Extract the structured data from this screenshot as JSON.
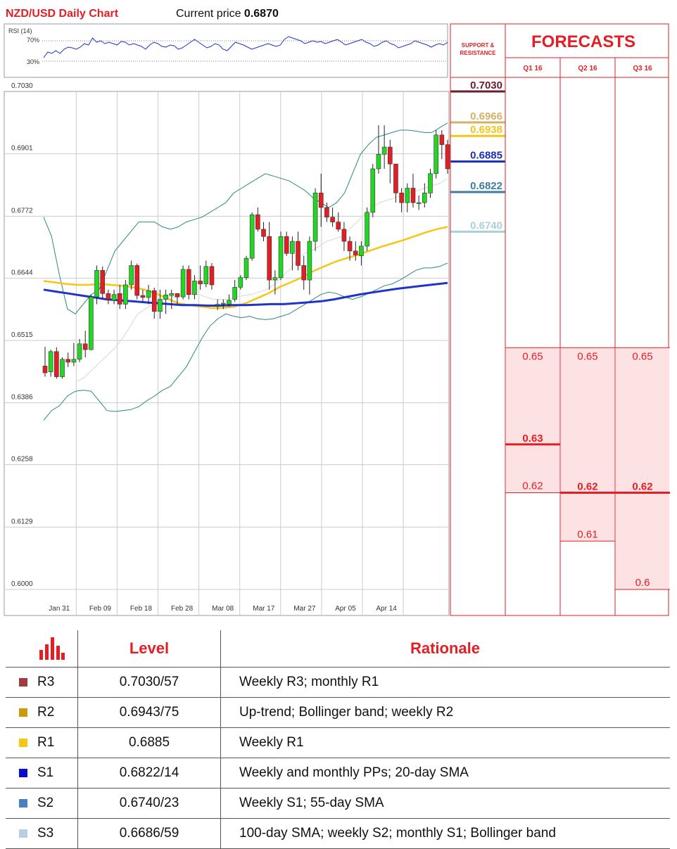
{
  "header": {
    "title": "NZD/USD Daily Chart",
    "price_label": "Current price ",
    "price_value": "0.6870"
  },
  "rsi": {
    "label": "RSI (14)",
    "upper_label": "70%",
    "lower_label": "30%",
    "values": [
      40,
      48,
      46,
      50,
      46,
      52,
      55,
      54,
      52,
      55,
      60,
      58,
      68,
      62,
      64,
      60,
      62,
      60,
      58,
      63,
      62,
      58,
      60,
      58,
      56,
      52,
      58,
      62,
      60,
      56,
      55,
      58,
      57,
      52,
      54,
      58,
      62,
      66,
      62,
      58,
      54,
      56,
      60,
      58,
      52,
      50,
      56,
      62,
      60,
      58,
      55,
      52,
      54,
      56,
      58,
      60,
      58,
      56,
      58,
      66,
      70,
      68,
      66,
      64,
      60,
      62,
      64,
      62,
      63,
      60,
      62,
      64,
      66,
      62,
      58,
      60,
      62,
      64,
      66,
      62,
      60,
      56,
      58,
      62,
      64,
      60,
      58,
      54,
      56,
      58,
      60,
      64,
      62,
      60,
      58,
      55,
      58,
      60,
      58,
      62
    ]
  },
  "colors": {
    "bull": "#22d722",
    "bear": "#e31e24",
    "sma20": "#dddddd",
    "sma55": "#f5c518",
    "sma100": "#2233cc",
    "bollinger": "#2a8a7e",
    "grid": "#cccccc",
    "accent": "#e31e24",
    "forecast_fill": "#fde2e3"
  },
  "chart_data": {
    "type": "candlestick",
    "title": "NZD/USD Daily Chart",
    "ylim": [
      0.6,
      0.703
    ],
    "yticks": [
      "0.7030",
      "0.6901",
      "0.6772",
      "0.6644",
      "0.6515",
      "0.6386",
      "0.6258",
      "0.6129",
      "0.6000"
    ],
    "xticks": [
      {
        "label": "Jan 31",
        "idx": 1
      },
      {
        "label": "Feb 09",
        "idx": 8
      },
      {
        "label": "Feb 18",
        "idx": 15
      },
      {
        "label": "Feb 28",
        "idx": 22
      },
      {
        "label": "Mar 08",
        "idx": 29
      },
      {
        "label": "Mar 17",
        "idx": 36
      },
      {
        "label": "Mar 27",
        "idx": 43
      },
      {
        "label": "Apr 05",
        "idx": 50
      },
      {
        "label": "Apr 14",
        "idx": 57
      }
    ],
    "candles": [
      [
        0.6462,
        0.6502,
        0.644,
        0.6448
      ],
      [
        0.645,
        0.6496,
        0.644,
        0.6492
      ],
      [
        0.6492,
        0.6501,
        0.6436,
        0.644
      ],
      [
        0.644,
        0.648,
        0.6436,
        0.6476
      ],
      [
        0.6476,
        0.649,
        0.646,
        0.647
      ],
      [
        0.647,
        0.651,
        0.6462,
        0.6476
      ],
      [
        0.6476,
        0.6518,
        0.647,
        0.6508
      ],
      [
        0.6508,
        0.6535,
        0.648,
        0.6496
      ],
      [
        0.6496,
        0.661,
        0.6495,
        0.6605
      ],
      [
        0.6605,
        0.667,
        0.659,
        0.666
      ],
      [
        0.666,
        0.6668,
        0.66,
        0.6612
      ],
      [
        0.6612,
        0.662,
        0.659,
        0.66
      ],
      [
        0.6598,
        0.662,
        0.659,
        0.661
      ],
      [
        0.6612,
        0.663,
        0.658,
        0.659
      ],
      [
        0.659,
        0.664,
        0.658,
        0.663
      ],
      [
        0.663,
        0.668,
        0.662,
        0.667
      ],
      [
        0.667,
        0.6674,
        0.66,
        0.6608
      ],
      [
        0.6608,
        0.662,
        0.6595,
        0.6604
      ],
      [
        0.6604,
        0.663,
        0.659,
        0.6618
      ],
      [
        0.6618,
        0.6624,
        0.656,
        0.6575
      ],
      [
        0.6575,
        0.662,
        0.656,
        0.66
      ],
      [
        0.66,
        0.662,
        0.657,
        0.6609
      ],
      [
        0.6608,
        0.662,
        0.658,
        0.6612
      ],
      [
        0.6612,
        0.661,
        0.659,
        0.6605
      ],
      [
        0.6605,
        0.667,
        0.66,
        0.6662
      ],
      [
        0.6662,
        0.667,
        0.66,
        0.661
      ],
      [
        0.661,
        0.665,
        0.66,
        0.6638
      ],
      [
        0.6638,
        0.667,
        0.662,
        0.6632
      ],
      [
        0.6632,
        0.668,
        0.6625,
        0.6668
      ],
      [
        0.6668,
        0.6675,
        0.662,
        0.663
      ],
      [
        0.6588,
        0.66,
        0.6578,
        0.659
      ],
      [
        0.659,
        0.66,
        0.658,
        0.6592
      ],
      [
        0.659,
        0.661,
        0.6585,
        0.6598
      ],
      [
        0.66,
        0.664,
        0.6595,
        0.6625
      ],
      [
        0.6625,
        0.665,
        0.662,
        0.6645
      ],
      [
        0.6645,
        0.669,
        0.664,
        0.6685
      ],
      [
        0.6685,
        0.678,
        0.668,
        0.6775
      ],
      [
        0.6775,
        0.679,
        0.674,
        0.6745
      ],
      [
        0.6745,
        0.676,
        0.672,
        0.673
      ],
      [
        0.673,
        0.676,
        0.662,
        0.664
      ],
      [
        0.664,
        0.666,
        0.661,
        0.6645
      ],
      [
        0.6645,
        0.674,
        0.664,
        0.673
      ],
      [
        0.673,
        0.674,
        0.669,
        0.6695
      ],
      [
        0.6695,
        0.673,
        0.666,
        0.672
      ],
      [
        0.672,
        0.674,
        0.666,
        0.667
      ],
      [
        0.667,
        0.669,
        0.662,
        0.664
      ],
      [
        0.664,
        0.673,
        0.661,
        0.672
      ],
      [
        0.672,
        0.683,
        0.67,
        0.682
      ],
      [
        0.682,
        0.686,
        0.675,
        0.679
      ],
      [
        0.679,
        0.68,
        0.676,
        0.677
      ],
      [
        0.677,
        0.679,
        0.675,
        0.676
      ],
      [
        0.676,
        0.678,
        0.674,
        0.6745
      ],
      [
        0.6745,
        0.676,
        0.67,
        0.672
      ],
      [
        0.672,
        0.673,
        0.668,
        0.67
      ],
      [
        0.67,
        0.672,
        0.668,
        0.6692
      ],
      [
        0.669,
        0.672,
        0.667,
        0.671
      ],
      [
        0.671,
        0.679,
        0.67,
        0.678
      ],
      [
        0.678,
        0.688,
        0.677,
        0.687
      ],
      [
        0.687,
        0.696,
        0.686,
        0.69
      ],
      [
        0.69,
        0.696,
        0.687,
        0.6915
      ],
      [
        0.6915,
        0.693,
        0.684,
        0.688
      ],
      [
        0.688,
        0.688,
        0.68,
        0.682
      ],
      [
        0.682,
        0.683,
        0.678,
        0.68
      ],
      [
        0.68,
        0.684,
        0.678,
        0.683
      ],
      [
        0.683,
        0.686,
        0.679,
        0.68
      ],
      [
        0.68,
        0.6815,
        0.6785,
        0.68
      ],
      [
        0.68,
        0.684,
        0.679,
        0.682
      ],
      [
        0.682,
        0.687,
        0.681,
        0.686
      ],
      [
        0.686,
        0.695,
        0.685,
        0.694
      ],
      [
        0.694,
        0.695,
        0.689,
        0.692
      ],
      [
        0.692,
        0.693,
        0.686,
        0.687
      ]
    ],
    "sma20": [
      0.643,
      0.644,
      0.6455,
      0.647,
      0.6485,
      0.65,
      0.652,
      0.6545,
      0.657,
      0.658,
      0.659,
      0.66,
      0.6605,
      0.6605,
      0.661,
      0.661,
      0.661,
      0.6605,
      0.66,
      0.66,
      0.66,
      0.6605,
      0.6608,
      0.661,
      0.6615,
      0.662,
      0.663,
      0.6645,
      0.666,
      0.668,
      0.6695,
      0.67,
      0.671,
      0.672,
      0.6725,
      0.673,
      0.6745,
      0.676,
      0.6775,
      0.679,
      0.68,
      0.6805,
      0.681,
      0.6815,
      0.682,
      0.6825,
      0.683,
      0.6835,
      0.684,
      0.685
    ],
    "sma55": [
      0.6638,
      0.6635,
      0.6632,
      0.663,
      0.663,
      0.6632,
      0.663,
      0.6628,
      0.6625,
      0.662,
      0.6612,
      0.6602,
      0.6592,
      0.6588,
      0.6585,
      0.6582,
      0.6582,
      0.6585,
      0.6592,
      0.6602,
      0.6612,
      0.6625,
      0.6635,
      0.6645,
      0.6658,
      0.6668,
      0.6678,
      0.6685,
      0.6692,
      0.67,
      0.6708,
      0.6715,
      0.6722,
      0.673,
      0.6738,
      0.6745,
      0.675
    ],
    "sma100": [
      0.662,
      0.6616,
      0.6612,
      0.6608,
      0.6604,
      0.66,
      0.6598,
      0.6596,
      0.6594,
      0.6592,
      0.659,
      0.6588,
      0.6588,
      0.6587,
      0.6587,
      0.6588,
      0.6588,
      0.6589,
      0.659,
      0.659,
      0.6592,
      0.6594,
      0.6596,
      0.66,
      0.6605,
      0.661,
      0.6614,
      0.6618,
      0.6622,
      0.6625,
      0.6628,
      0.6631,
      0.6634
    ],
    "bb_upper": [
      0.677,
      0.673,
      0.665,
      0.658,
      0.657,
      0.659,
      0.661,
      0.662,
      0.666,
      0.67,
      0.672,
      0.674,
      0.676,
      0.676,
      0.676,
      0.675,
      0.6745,
      0.675,
      0.676,
      0.6765,
      0.677,
      0.678,
      0.679,
      0.68,
      0.682,
      0.683,
      0.684,
      0.685,
      0.686,
      0.6855,
      0.685,
      0.6845,
      0.6835,
      0.6825,
      0.681,
      0.68,
      0.679,
      0.68,
      0.682,
      0.686,
      0.69,
      0.692,
      0.6935,
      0.694,
      0.6945,
      0.695,
      0.695,
      0.6948,
      0.6945,
      0.6945,
      0.6955,
      0.6965
    ],
    "bb_lower": [
      0.635,
      0.637,
      0.638,
      0.64,
      0.641,
      0.6412,
      0.641,
      0.639,
      0.637,
      0.6368,
      0.637,
      0.6372,
      0.6378,
      0.639,
      0.64,
      0.6412,
      0.642,
      0.644,
      0.646,
      0.649,
      0.652,
      0.6545,
      0.656,
      0.657,
      0.6565,
      0.6562,
      0.6565,
      0.656,
      0.6558,
      0.656,
      0.6565,
      0.657,
      0.658,
      0.659,
      0.66,
      0.661,
      0.6615,
      0.6612,
      0.6605,
      0.66,
      0.6605,
      0.6612,
      0.662,
      0.6628,
      0.6632,
      0.664,
      0.665,
      0.666,
      0.6665,
      0.6665,
      0.6668,
      0.6675
    ],
    "support_resistance": [
      {
        "value": 0.703,
        "label": "0.7030",
        "color": "#6b1b2f"
      },
      {
        "value": 0.6966,
        "label": "0.6966",
        "color": "#d4b06a"
      },
      {
        "value": 0.6938,
        "label": "0.6938",
        "color": "#f5c518"
      },
      {
        "value": 0.6885,
        "label": "0.6885",
        "color": "#1a2fb8"
      },
      {
        "value": 0.6822,
        "label": "0.6822",
        "color": "#3d7ea0"
      },
      {
        "value": 0.674,
        "label": "0.6740",
        "color": "#a9cfd8"
      }
    ],
    "forecasts": {
      "title": "FORECASTS",
      "support_resistance_title": [
        "SUPPORT &",
        "RESISTANCE"
      ],
      "quarters": [
        {
          "label": "Q1 16",
          "high": 0.65,
          "mid": 0.63,
          "low": 0.62,
          "high_label": "0.65",
          "mid_label": "0.63",
          "low_label": "0.62"
        },
        {
          "label": "Q2 16",
          "high": 0.65,
          "mid": 0.62,
          "low": 0.61,
          "high_label": "0.65",
          "mid_label": "0.62",
          "low_label": "0.61"
        },
        {
          "label": "Q3 16",
          "high": 0.65,
          "mid": 0.62,
          "low": 0.6,
          "high_label": "0.65",
          "mid_label": "0.62",
          "low_label": "0.6"
        }
      ]
    }
  },
  "levels_table": {
    "headers": {
      "level": "Level",
      "rationale": "Rationale"
    },
    "rows": [
      {
        "name": "R3",
        "level": "0.7030/57",
        "rationale": "Weekly R3; monthly R1",
        "color": "#a33a3f"
      },
      {
        "name": "R2",
        "level": "0.6943/75",
        "rationale": "Up-trend; Bollinger band; weekly R2",
        "color": "#cc9a06"
      },
      {
        "name": "R1",
        "level": "0.6885",
        "rationale": "Weekly R1",
        "color": "#f5c518"
      },
      {
        "name": "S1",
        "level": "0.6822/14",
        "rationale": "Weekly and monthly PPs; 20-day SMA",
        "color": "#0a0ad6"
      },
      {
        "name": "S2",
        "level": "0.6740/23",
        "rationale": "Weekly S1; 55-day SMA",
        "color": "#4a7fc0"
      },
      {
        "name": "S3",
        "level": "0.6686/59",
        "rationale": "100-day SMA; weekly S2; monthly S1; Bollinger band",
        "color": "#b9cde4"
      }
    ]
  }
}
